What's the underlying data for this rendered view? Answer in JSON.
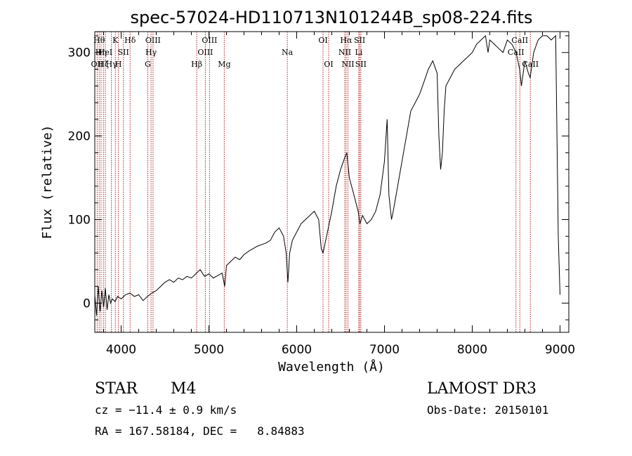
{
  "chart_data": {
    "type": "line",
    "title": "spec-57024-HD110713N101244B_sp08-224.fits",
    "xlabel": "Wavelength (Å)",
    "ylabel": "Flux (relative)",
    "xlim": [
      3700,
      9100
    ],
    "ylim": [
      -35,
      325
    ],
    "xticks": [
      4000,
      5000,
      6000,
      7000,
      8000,
      9000
    ],
    "yticks": [
      0,
      100,
      200,
      300
    ],
    "series": [
      {
        "name": "spectrum",
        "x": [
          3700,
          3720,
          3740,
          3760,
          3780,
          3800,
          3820,
          3840,
          3860,
          3880,
          3900,
          3930,
          3960,
          4000,
          4050,
          4100,
          4150,
          4200,
          4250,
          4300,
          4350,
          4400,
          4450,
          4500,
          4550,
          4600,
          4650,
          4700,
          4750,
          4800,
          4850,
          4900,
          4950,
          5000,
          5050,
          5100,
          5150,
          5180,
          5200,
          5250,
          5300,
          5350,
          5400,
          5450,
          5500,
          5550,
          5600,
          5650,
          5700,
          5750,
          5800,
          5850,
          5880,
          5900,
          5920,
          5950,
          6000,
          6050,
          6100,
          6150,
          6200,
          6250,
          6280,
          6300,
          6350,
          6400,
          6450,
          6500,
          6550,
          6570,
          6600,
          6650,
          6700,
          6720,
          6750,
          6800,
          6850,
          6900,
          6950,
          7000,
          7030,
          7050,
          7080,
          7100,
          7150,
          7200,
          7250,
          7300,
          7350,
          7400,
          7450,
          7500,
          7550,
          7600,
          7620,
          7640,
          7660,
          7680,
          7700,
          7750,
          7800,
          7850,
          7900,
          7950,
          8000,
          8050,
          8100,
          8150,
          8180,
          8200,
          8250,
          8300,
          8350,
          8400,
          8450,
          8500,
          8540,
          8560,
          8600,
          8640,
          8660,
          8700,
          8750,
          8800,
          8850,
          8900,
          8950,
          8980,
          9000
        ],
        "y": [
          10,
          -15,
          20,
          -10,
          15,
          -5,
          18,
          -8,
          10,
          0,
          5,
          2,
          8,
          5,
          10,
          12,
          8,
          10,
          3,
          8,
          12,
          15,
          20,
          25,
          28,
          25,
          30,
          28,
          32,
          30,
          35,
          40,
          32,
          35,
          30,
          33,
          36,
          20,
          45,
          50,
          55,
          52,
          58,
          62,
          65,
          68,
          70,
          72,
          75,
          85,
          90,
          80,
          60,
          25,
          60,
          75,
          85,
          95,
          100,
          105,
          110,
          100,
          65,
          60,
          85,
          110,
          140,
          160,
          175,
          180,
          150,
          130,
          110,
          95,
          105,
          95,
          100,
          110,
          130,
          170,
          220,
          130,
          100,
          110,
          140,
          170,
          200,
          230,
          240,
          250,
          265,
          280,
          290,
          275,
          200,
          160,
          180,
          230,
          260,
          270,
          280,
          285,
          290,
          295,
          300,
          310,
          315,
          320,
          300,
          315,
          310,
          305,
          300,
          315,
          310,
          300,
          280,
          260,
          290,
          275,
          270,
          300,
          315,
          320,
          320,
          315,
          320,
          80,
          10
        ]
      }
    ],
    "line_markers": [
      {
        "wavelength": 3727,
        "labels": [
          {
            "text": "OII",
            "row": 3
          }
        ]
      },
      {
        "wavelength": 3750,
        "labels": [
          {
            "text": "Hθ",
            "row": 1
          }
        ]
      },
      {
        "wavelength": 3771,
        "labels": [
          {
            "text": "Hη",
            "row": 2
          }
        ]
      },
      {
        "wavelength": 3798,
        "labels": [
          {
            "text": "Hζ",
            "row": 3
          }
        ]
      },
      {
        "wavelength": 3820,
        "labels": [
          {
            "text": "HeI",
            "row": 2
          }
        ]
      },
      {
        "wavelength": 3889,
        "labels": [
          {
            "text": "Hγ",
            "row": 3
          }
        ]
      },
      {
        "wavelength": 3934,
        "labels": [
          {
            "text": "K",
            "row": 1
          }
        ]
      },
      {
        "wavelength": 3969,
        "labels": [
          {
            "text": "H",
            "row": 3
          }
        ]
      },
      {
        "wavelength": 4026,
        "labels": [
          {
            "text": "SII",
            "row": 2
          }
        ]
      },
      {
        "wavelength": 4102,
        "labels": [
          {
            "text": "Hδ",
            "row": 1
          }
        ]
      },
      {
        "wavelength": 4304,
        "labels": [
          {
            "text": "G",
            "row": 3
          }
        ]
      },
      {
        "wavelength": 4341,
        "labels": [
          {
            "text": "Hγ",
            "row": 2
          }
        ]
      },
      {
        "wavelength": 4363,
        "labels": [
          {
            "text": "OIII",
            "row": 1
          }
        ]
      },
      {
        "wavelength": 4861,
        "labels": [
          {
            "text": "Hβ",
            "row": 3
          }
        ]
      },
      {
        "wavelength": 4959,
        "labels": [
          {
            "text": "OIII",
            "row": 2
          }
        ]
      },
      {
        "wavelength": 5007,
        "labels": [
          {
            "text": "OIII",
            "row": 1
          }
        ]
      },
      {
        "wavelength": 5175,
        "labels": [
          {
            "text": "Mg",
            "row": 3
          }
        ]
      },
      {
        "wavelength": 5893,
        "labels": [
          {
            "text": "Na",
            "row": 2
          }
        ]
      },
      {
        "wavelength": 6300,
        "labels": [
          {
            "text": "OI",
            "row": 1
          }
        ]
      },
      {
        "wavelength": 6364,
        "labels": [
          {
            "text": "OI",
            "row": 3
          }
        ]
      },
      {
        "wavelength": 6548,
        "labels": [
          {
            "text": "NII",
            "row": 2
          }
        ]
      },
      {
        "wavelength": 6563,
        "labels": [
          {
            "text": "Hα",
            "row": 1
          }
        ]
      },
      {
        "wavelength": 6584,
        "labels": [
          {
            "text": "NII",
            "row": 3
          }
        ]
      },
      {
        "wavelength": 6707,
        "labels": [
          {
            "text": "Li",
            "row": 2
          }
        ]
      },
      {
        "wavelength": 6717,
        "labels": [
          {
            "text": "SII",
            "row": 1
          }
        ]
      },
      {
        "wavelength": 6731,
        "labels": [
          {
            "text": "SII",
            "row": 3
          }
        ]
      },
      {
        "wavelength": 8498,
        "labels": [
          {
            "text": "CaII",
            "row": 2
          }
        ]
      },
      {
        "wavelength": 8542,
        "labels": [
          {
            "text": "CaII",
            "row": 1
          }
        ]
      },
      {
        "wavelength": 8662,
        "labels": [
          {
            "text": "CaII",
            "row": 3
          }
        ]
      }
    ]
  },
  "info": {
    "object_class": "STAR",
    "subclass": "M4",
    "survey": "LAMOST DR3",
    "cz": "cz = −11.4 ± 0.9 km/s",
    "obs_date": "Obs-Date: 20150101",
    "coords": "RA = 167.58184, DEC =   8.84883"
  },
  "colors": {
    "spectrum": "#000000",
    "marker_line": "#b22222",
    "axis": "#000000"
  }
}
